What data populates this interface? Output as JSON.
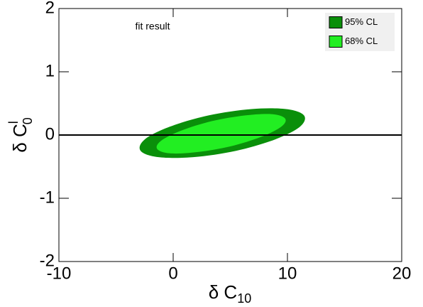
{
  "chart_data": {
    "type": "contour",
    "annotation": "fit result",
    "xlabel": [
      "δ C",
      "10"
    ],
    "ylabel": [
      "δ C",
      "l",
      "0"
    ],
    "xlim": [
      -10,
      20
    ],
    "xticks": [
      -10,
      0,
      10,
      20
    ],
    "ylim": [
      -2,
      2
    ],
    "yticks": [
      -2,
      -1,
      0,
      1,
      2
    ],
    "reference_line": {
      "y": 0
    },
    "legend": "top-right",
    "series": [
      {
        "name": "95% CL",
        "color": "#0a8f0a",
        "x": [
          11.45,
          9.89,
          6.84,
          3.1,
          -0.32,
          -2.49,
          -2.85,
          -1.29,
          1.77,
          5.5,
          8.92,
          11.09
        ],
        "y": [
          0.31,
          0.41,
          0.41,
          0.31,
          0.13,
          -0.07,
          -0.25,
          -0.35,
          -0.35,
          -0.25,
          -0.07,
          0.13
        ]
      },
      {
        "name": "68% CL",
        "color": "#22ee22",
        "x": [
          9.8,
          8.65,
          6.31,
          3.4,
          0.71,
          -1.05,
          -1.4,
          -0.25,
          2.09,
          5.0,
          7.69,
          9.45
        ],
        "y": [
          0.26,
          0.33,
          0.31,
          0.22,
          0.07,
          -0.09,
          -0.22,
          -0.29,
          -0.27,
          -0.18,
          -0.03,
          0.13
        ]
      }
    ]
  }
}
